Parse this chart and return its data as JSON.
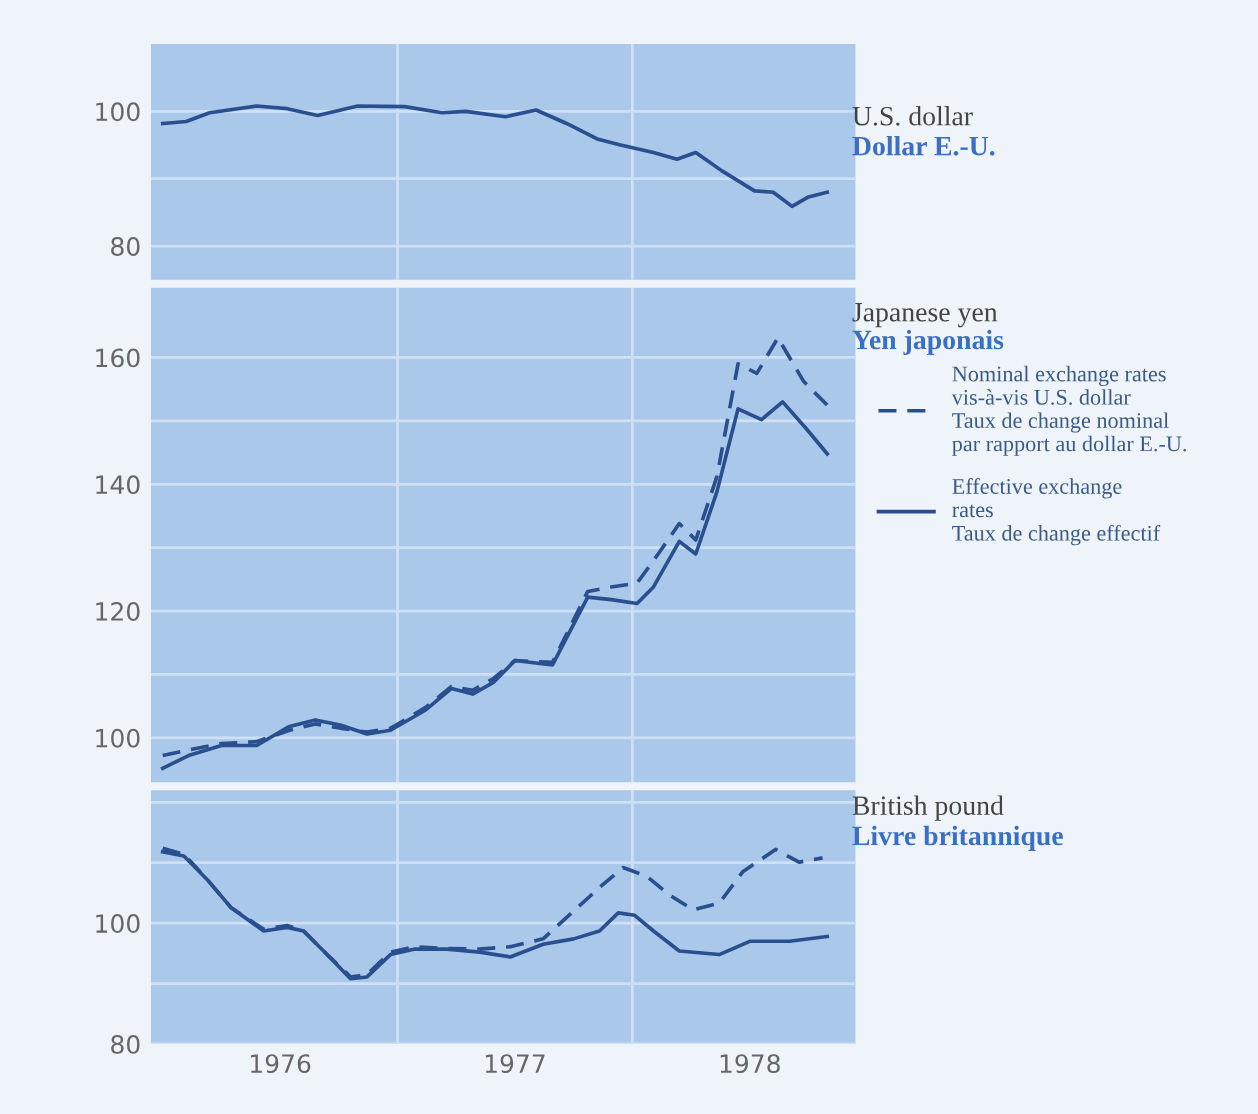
{
  "chart_data": [
    {
      "type": "line",
      "title": "U.S. dollar",
      "subtitle": "Dollar E.-U.",
      "xlim": [
        1975.95,
        1978.95
      ],
      "xticks": [
        {
          "value": 1977,
          "label": null
        },
        {
          "value": 1978,
          "label": null
        }
      ],
      "ylim": [
        75,
        110
      ],
      "yticks": [
        80,
        {
          "value": 90,
          "label": null
        },
        100
      ],
      "grid": true,
      "tick_labels": "y",
      "series": [
        {
          "color": "#2a4f8f",
          "line_style": "solid",
          "x": [
            1976.0,
            1976.1,
            1976.2,
            1976.4,
            1976.53,
            1976.66,
            1976.83,
            1977.03,
            1977.19,
            1977.29,
            1977.46,
            1977.59,
            1977.72,
            1977.85,
            1977.95,
            1978.09,
            1978.19,
            1978.27,
            1978.38,
            1978.52,
            1978.6,
            1978.68,
            1978.75,
            1978.83
          ],
          "values": [
            98.2,
            98.5,
            99.8,
            100.8,
            100.4,
            99.4,
            100.8,
            100.7,
            99.8,
            100,
            99.2,
            100.2,
            98.2,
            95.9,
            95,
            93.9,
            92.9,
            93.9,
            91.2,
            88.2,
            88,
            85.9,
            87.3,
            88
          ]
        }
      ]
    },
    {
      "type": "line",
      "title": "Japanese yen",
      "subtitle": "Yen japonais",
      "xlim": [
        1975.95,
        1978.95
      ],
      "xticks": [
        {
          "value": 1977,
          "label": null
        },
        {
          "value": 1978,
          "label": null
        }
      ],
      "ylim": [
        93,
        171
      ],
      "yticks": [
        100,
        {
          "value": 110,
          "label": null
        },
        120,
        {
          "value": 130,
          "label": null
        },
        140,
        {
          "value": 150,
          "label": null
        },
        160
      ],
      "grid": true,
      "tick_labels": "y",
      "legend": "right",
      "series": [
        {
          "name": "Nominal exchange rates\nvis-à-vis U.S. dollar\nTaux de change nominal\npar rapport au dollar E.-U.",
          "color": "#2a4f8f",
          "line_style": "dashed",
          "x": [
            1976.0,
            1976.11,
            1976.25,
            1976.4,
            1976.54,
            1976.65,
            1976.76,
            1976.87,
            1976.97,
            1977.12,
            1977.23,
            1977.32,
            1977.41,
            1977.5,
            1977.66,
            1977.81,
            1977.91,
            1978.02,
            1978.11,
            1978.2,
            1978.27,
            1978.36,
            1978.45,
            1978.53,
            1978.62,
            1978.73,
            1978.83
          ],
          "values": [
            97.2,
            98.1,
            99.1,
            99.4,
            101.2,
            102.2,
            101.5,
            100.9,
            101.5,
            104.8,
            108.1,
            107.5,
            109.4,
            112.2,
            111.9,
            123.1,
            123.8,
            124.4,
            129,
            133.8,
            131.2,
            141.2,
            159,
            157.5,
            163.1,
            156.2,
            152.5
          ]
        },
        {
          "name": "Effective exchange\nrates\nTaux de change effectif",
          "color": "#2a4f8f",
          "line_style": "solid",
          "x": [
            1976.0,
            1976.11,
            1976.25,
            1976.4,
            1976.54,
            1976.65,
            1976.76,
            1976.87,
            1976.97,
            1977.12,
            1977.23,
            1977.32,
            1977.41,
            1977.5,
            1977.66,
            1977.81,
            1977.91,
            1978.02,
            1978.09,
            1978.2,
            1978.27,
            1978.36,
            1978.45,
            1978.55,
            1978.64,
            1978.74,
            1978.83
          ],
          "values": [
            95.2,
            97.2,
            98.8,
            98.8,
            101.8,
            102.8,
            102,
            100.6,
            101.2,
            104.4,
            107.8,
            106.9,
            108.8,
            112.2,
            111.5,
            122.2,
            121.8,
            121.2,
            123.8,
            131,
            129,
            138.8,
            151.9,
            150.2,
            153,
            148.8,
            144.8
          ]
        }
      ]
    },
    {
      "type": "line",
      "title": "British pound",
      "subtitle": "Livre britannique",
      "xlim": [
        1975.95,
        1978.95
      ],
      "xticks": [
        {
          "value": 1976.5,
          "label": "1976"
        },
        {
          "value": 1977,
          "label": null
        },
        {
          "value": 1977.5,
          "label": "1977"
        },
        {
          "value": 1978,
          "label": null
        },
        {
          "value": 1978.5,
          "label": "1978"
        }
      ],
      "ylim": [
        80,
        122
      ],
      "yticks": [
        80,
        {
          "value": 90,
          "label": null
        },
        100,
        {
          "value": 110,
          "label": null
        },
        {
          "value": 120,
          "label": null
        }
      ],
      "grid": true,
      "series": [
        {
          "color": "#2a4f8f",
          "line_style": "dashed",
          "x": [
            1976.0,
            1976.09,
            1976.19,
            1976.29,
            1976.43,
            1976.53,
            1976.6,
            1976.7,
            1976.8,
            1976.87,
            1976.97,
            1977.07,
            1977.21,
            1977.35,
            1977.48,
            1977.62,
            1977.75,
            1977.86,
            1977.96,
            1978.06,
            1978.16,
            1978.26,
            1978.37,
            1978.47,
            1978.61,
            1978.71,
            1978.81
          ],
          "values": [
            112.4,
            111.4,
            107.2,
            102.6,
            99,
            99.6,
            98.7,
            94.8,
            91.1,
            91.5,
            95.2,
            96.1,
            95.8,
            95.7,
            96.1,
            97.4,
            102,
            105.9,
            109.2,
            107.8,
            104.6,
            102.2,
            103.3,
            108.5,
            112.2,
            110.1,
            110.8
          ]
        },
        {
          "color": "#2a4f8f",
          "line_style": "solid",
          "x": [
            1976.0,
            1976.09,
            1976.19,
            1976.29,
            1976.43,
            1976.53,
            1976.6,
            1976.7,
            1976.8,
            1976.87,
            1976.97,
            1977.07,
            1977.21,
            1977.35,
            1977.48,
            1977.62,
            1977.75,
            1977.86,
            1977.94,
            1978.01,
            1978.09,
            1978.2,
            1978.37,
            1978.5,
            1978.67,
            1978.83
          ],
          "values": [
            111.8,
            111.1,
            107.2,
            102.6,
            98.7,
            99.3,
            98.7,
            94.8,
            90.8,
            91.1,
            94.8,
            95.7,
            95.7,
            95.2,
            94.4,
            96.5,
            97.4,
            98.7,
            101.7,
            101.3,
            98.7,
            95.4,
            94.8,
            97,
            97,
            97.8
          ]
        }
      ]
    }
  ]
}
